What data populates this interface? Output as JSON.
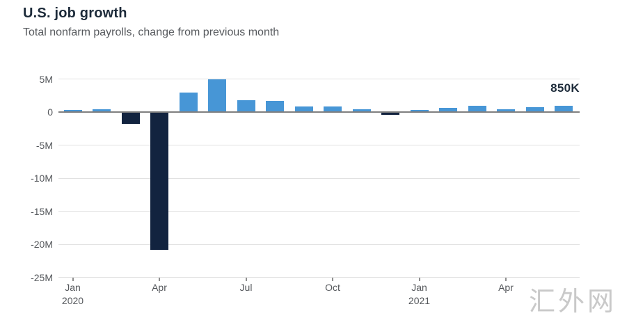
{
  "header": {
    "title": "U.S. job growth",
    "subtitle": "Total nonfarm payrolls, change from previous month"
  },
  "watermark": "汇外网",
  "colors": {
    "positive_bar": "#4796d6",
    "negative_bar": "#12233f",
    "zero_line": "#7f7f7f",
    "gridline": "#e1e1e1",
    "axis_text": "#55585c",
    "title_text": "#1d2b3a",
    "annotation_text": "#1d2b3a",
    "watermark_text": "#c9c9c9"
  },
  "chart_data": {
    "type": "bar",
    "title": "U.S. job growth",
    "subtitle": "Total nonfarm payrolls, change from previous month",
    "unit": "millions of jobs, change from previous month",
    "categories": [
      "Jan 2020",
      "Feb 2020",
      "Mar 2020",
      "Apr 2020",
      "May 2020",
      "Jun 2020",
      "Jul 2020",
      "Aug 2020",
      "Sep 2020",
      "Oct 2020",
      "Nov 2020",
      "Dec 2020",
      "Jan 2021",
      "Feb 2021",
      "Mar 2021",
      "Apr 2021",
      "May 2021",
      "Jun 2021"
    ],
    "values": [
      0.2,
      0.3,
      -1.7,
      -20.7,
      2.8,
      4.8,
      1.7,
      1.6,
      0.7,
      0.7,
      0.3,
      -0.3,
      0.2,
      0.55,
      0.8,
      0.27,
      0.6,
      0.85
    ],
    "xlabel": "",
    "ylabel": "",
    "ylim": [
      -25,
      5
    ],
    "grid": true,
    "legend": false,
    "yticks": [
      {
        "label": "5M",
        "value": 5
      },
      {
        "label": "0",
        "value": 0
      },
      {
        "label": "-5M",
        "value": -5
      },
      {
        "label": "-10M",
        "value": -10
      },
      {
        "label": "-15M",
        "value": -15
      },
      {
        "label": "-20M",
        "value": -20
      },
      {
        "label": "-25M",
        "value": -25
      }
    ],
    "xticks": [
      {
        "month": "Jan",
        "year": "2020",
        "index": 0
      },
      {
        "month": "Apr",
        "year": "",
        "index": 3
      },
      {
        "month": "Jul",
        "year": "",
        "index": 6
      },
      {
        "month": "Oct",
        "year": "",
        "index": 9
      },
      {
        "month": "Jan",
        "year": "2021",
        "index": 12
      },
      {
        "month": "Apr",
        "year": "",
        "index": 15
      }
    ],
    "annotation": {
      "text": "850K",
      "target": "Jun 2021"
    }
  }
}
